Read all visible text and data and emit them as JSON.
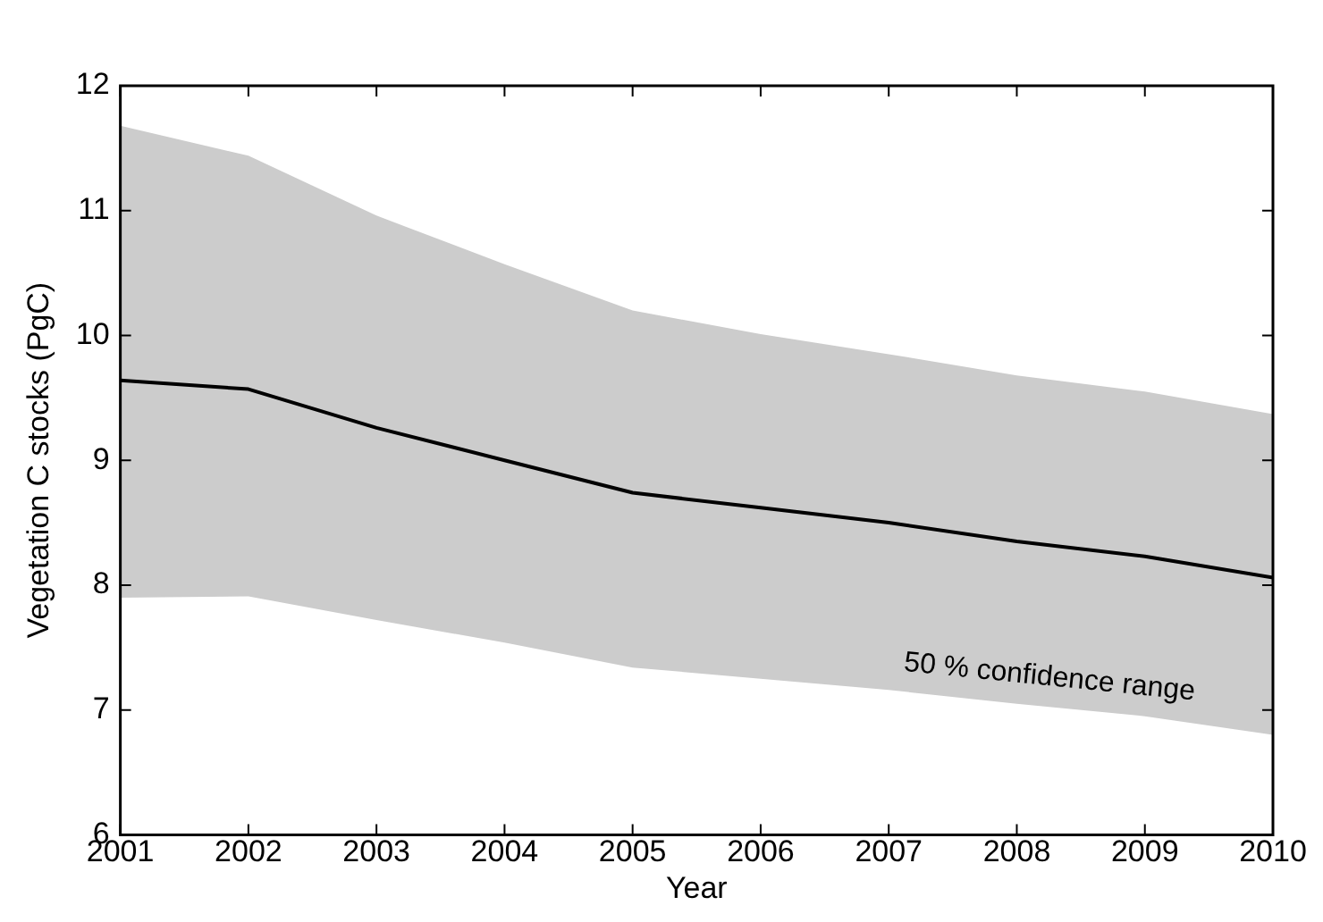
{
  "chart_data": {
    "type": "line",
    "xlabel": "Year",
    "ylabel": "Vegetation C stocks (PgC)",
    "x": [
      2001,
      2002,
      2003,
      2004,
      2005,
      2006,
      2007,
      2008,
      2009,
      2010
    ],
    "series": [
      {
        "color": "#000000",
        "values": [
          9.64,
          9.57,
          9.26,
          9.0,
          8.74,
          8.62,
          8.5,
          8.35,
          8.23,
          8.06
        ],
        "lower": [
          7.9,
          7.91,
          7.72,
          7.54,
          7.34,
          7.25,
          7.16,
          7.05,
          6.95,
          6.8
        ],
        "upper": [
          11.68,
          11.44,
          10.96,
          10.57,
          10.2,
          10.01,
          9.85,
          9.68,
          9.55,
          9.37
        ]
      }
    ],
    "annotations": [
      "50 % confidence range"
    ],
    "xlim": [
      2001,
      2010
    ],
    "xticks": [
      2001,
      2002,
      2003,
      2004,
      2005,
      2006,
      2007,
      2008,
      2009,
      2010
    ],
    "ylim": [
      6,
      12
    ],
    "yticks": [
      6,
      7,
      8,
      9,
      10,
      11,
      12
    ],
    "grid": false,
    "legend": false,
    "marker": "none",
    "line_style": "solid"
  }
}
